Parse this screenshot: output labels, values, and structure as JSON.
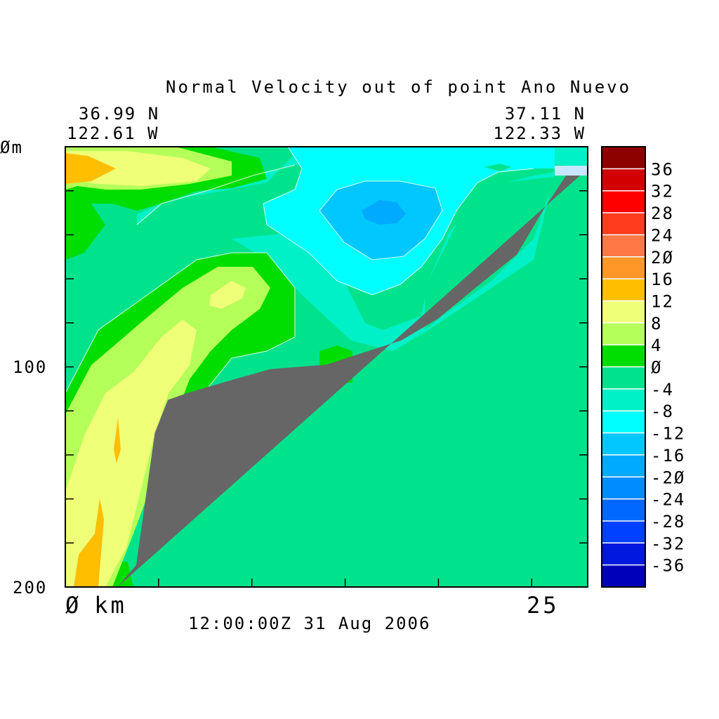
{
  "chart_data": {
    "type": "heatmap",
    "title": "Normal Velocity out of point Ano Nuevo",
    "time_label": "12:00:00Z  31 Aug 2006",
    "corner_left": {
      "lat": "36.99 N",
      "lon": "122.61 W"
    },
    "corner_right": {
      "lat": "37.11 N",
      "lon": "122.33 W"
    },
    "y_axis": {
      "unit": "m",
      "ticks": [
        "Ø",
        "100",
        "200"
      ],
      "ylim": [
        0,
        200
      ],
      "inverted": true
    },
    "x_axis": {
      "unit": "km",
      "ticks": [
        "Ø",
        "25"
      ],
      "xlim": [
        0,
        28
      ]
    },
    "colorbar": {
      "levels": [
        -40,
        -36,
        -32,
        -28,
        -24,
        -20,
        -16,
        -12,
        -8,
        -4,
        0,
        4,
        8,
        12,
        16,
        20,
        24,
        28,
        32,
        36,
        40
      ],
      "labels": [
        "-36",
        "-32",
        "-28",
        "-24",
        "-2Ø",
        "-16",
        "-12",
        "-8",
        "-4",
        "Ø",
        "4",
        "8",
        "12",
        "16",
        "2Ø",
        "24",
        "28",
        "32",
        "36"
      ],
      "colors": [
        "#0000bb",
        "#0018e0",
        "#0040ff",
        "#0068ff",
        "#008cff",
        "#00aaff",
        "#00c8ff",
        "#00ffff",
        "#00f0c8",
        "#00e38c",
        "#00dd00",
        "#b4ff5a",
        "#f0ff78",
        "#ffbe00",
        "#ff9628",
        "#ff7846",
        "#ff3c1e",
        "#ff0000",
        "#d20000",
        "#8c0000"
      ]
    },
    "bathymetry": {
      "color": "#666666",
      "points": [
        [
          2.8,
          200
        ],
        [
          3.8,
          190
        ],
        [
          4.8,
          130
        ],
        [
          5.5,
          115
        ],
        [
          6.5,
          112
        ],
        [
          8.5,
          107
        ],
        [
          11,
          101
        ],
        [
          14,
          99
        ],
        [
          15.8,
          94
        ],
        [
          18,
          88
        ],
        [
          20,
          78
        ],
        [
          22,
          64
        ],
        [
          24.2,
          49
        ],
        [
          25.6,
          29
        ],
        [
          27,
          11
        ],
        [
          27.6,
          10
        ],
        [
          28,
          10
        ]
      ]
    },
    "sample_values": {
      "x_km": [
        0,
        2,
        4,
        6,
        8,
        10,
        12,
        14,
        16,
        18,
        20,
        22,
        24,
        26,
        28
      ],
      "depth_m": [
        0,
        20,
        40,
        60,
        80,
        100,
        120,
        140,
        160,
        180,
        200
      ],
      "velocity": [
        [
          13,
          9,
          9,
          6,
          3,
          -2,
          -7,
          -10,
          -12,
          -13,
          -11,
          -8,
          -9,
          -10,
          -11
        ],
        [
          10,
          6,
          3,
          1,
          -1,
          -3,
          -8,
          -14,
          -18,
          -16,
          -10,
          -4,
          -3,
          -7,
          -8
        ],
        [
          2,
          1,
          -2,
          -5,
          -4,
          -2,
          -3,
          -9,
          -15,
          -14,
          -10,
          -5,
          -2,
          -3,
          -5
        ],
        [
          1,
          2,
          4,
          6,
          7,
          3,
          -3,
          -6,
          -8,
          -6,
          -3,
          -3,
          -3,
          -3,
          -3
        ],
        [
          6,
          7,
          8,
          8,
          6,
          3,
          -1,
          -3,
          -3,
          -2,
          -3,
          -3,
          -3,
          -3,
          -3
        ],
        [
          9,
          10,
          9,
          6,
          3,
          1,
          -2,
          -3,
          0,
          -1,
          -2,
          -3,
          -3,
          -3,
          -3
        ],
        [
          10,
          11,
          8,
          2,
          1,
          -2,
          -2,
          -3,
          -2,
          -2,
          -3,
          -3,
          -3,
          -3,
          -3
        ],
        [
          10,
          12,
          8,
          3,
          2,
          -2,
          -3,
          -3,
          -3,
          -3,
          -3,
          -3,
          -3,
          -3,
          -3
        ],
        [
          8,
          11,
          8,
          3,
          2,
          -2,
          -3,
          -3,
          -3,
          -3,
          -3,
          -3,
          -3,
          -3,
          -3
        ],
        [
          12,
          13,
          6,
          3,
          2,
          -2,
          -3,
          -3,
          -3,
          -3,
          -3,
          -3,
          -3,
          -3,
          -3
        ],
        [
          13,
          5,
          4,
          3,
          2,
          -2,
          -3,
          -3,
          -3,
          -3,
          -3,
          -3,
          -3,
          -3,
          -3
        ]
      ]
    }
  }
}
